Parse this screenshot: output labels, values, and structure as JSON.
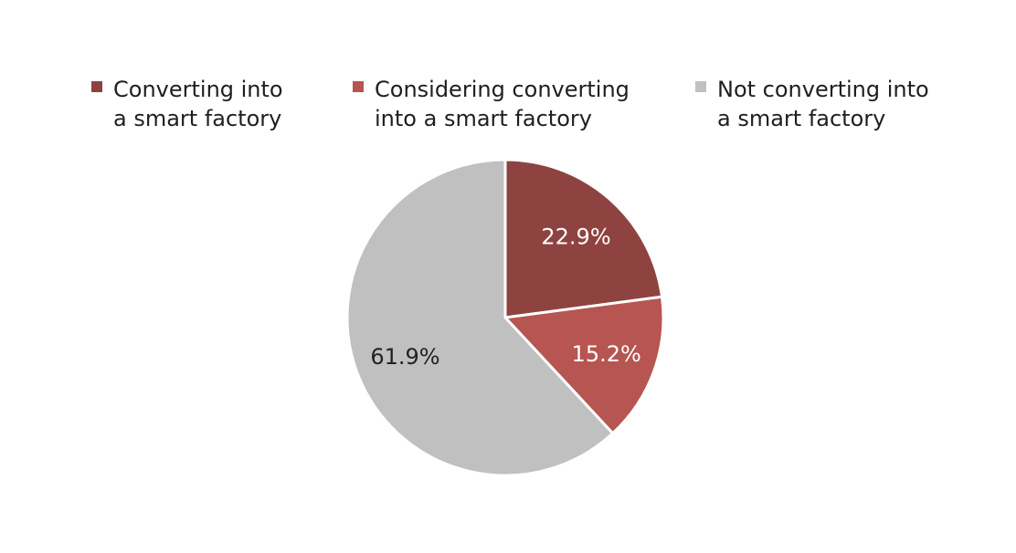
{
  "chart_data": {
    "type": "pie",
    "title": "",
    "legend_position": "top",
    "slices": [
      {
        "label": "Converting into\na smart factory",
        "value": 22.9,
        "value_label": "22.9%",
        "color": "#8e4340",
        "text_color": "#ffffff"
      },
      {
        "label": "Considering converting\ninto a smart factory",
        "value": 15.2,
        "value_label": "15.2%",
        "color": "#b65551",
        "text_color": "#ffffff"
      },
      {
        "label": "Not converting into\na smart factory",
        "value": 61.9,
        "value_label": "61.9%",
        "color": "#c0c0c0",
        "text_color": "#222222"
      }
    ]
  }
}
